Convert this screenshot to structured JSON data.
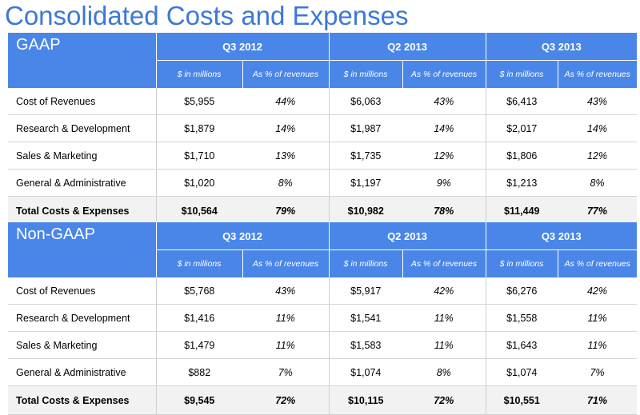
{
  "title": "Consolidated Costs and Expenses",
  "tables": [
    {
      "label": "GAAP",
      "periods": [
        "Q3 2012",
        "Q2 2013",
        "Q3 2013"
      ],
      "sub_headers": [
        "$ in millions",
        "As % of revenues"
      ],
      "rows": [
        {
          "label": "Cost of Revenues",
          "cells": [
            "$5,955",
            "44%",
            "$6,063",
            "43%",
            "$6,413",
            "43%"
          ]
        },
        {
          "label": "Research & Development",
          "cells": [
            "$1,879",
            "14%",
            "$1,987",
            "14%",
            "$2,017",
            "14%"
          ]
        },
        {
          "label": "Sales & Marketing",
          "cells": [
            "$1,710",
            "13%",
            "$1,735",
            "12%",
            "$1,806",
            "12%"
          ]
        },
        {
          "label": "General & Administrative",
          "cells": [
            "$1,020",
            "8%",
            "$1,197",
            "9%",
            "$1,213",
            "8%"
          ]
        }
      ],
      "total": {
        "label": "Total Costs & Expenses",
        "cells": [
          "$10,564",
          "79%",
          "$10,982",
          "78%",
          "$11,449",
          "77%"
        ]
      }
    },
    {
      "label": "Non-GAAP",
      "periods": [
        "Q3 2012",
        "Q2 2013",
        "Q3 2013"
      ],
      "sub_headers": [
        "$ in millions",
        "As % of revenues"
      ],
      "rows": [
        {
          "label": "Cost of Revenues",
          "cells": [
            "$5,768",
            "43%",
            "$5,917",
            "42%",
            "$6,276",
            "42%"
          ]
        },
        {
          "label": "Research & Development",
          "cells": [
            "$1,416",
            "11%",
            "$1,541",
            "11%",
            "$1,558",
            "11%"
          ]
        },
        {
          "label": "Sales & Marketing",
          "cells": [
            "$1,479",
            "11%",
            "$1,583",
            "11%",
            "$1,643",
            "11%"
          ]
        },
        {
          "label": "General & Administrative",
          "cells": [
            "$882",
            "7%",
            "$1,074",
            "8%",
            "$1,074",
            "7%"
          ]
        }
      ],
      "total": {
        "label": "Total Costs & Expenses",
        "cells": [
          "$9,545",
          "72%",
          "$10,115",
          "72%",
          "$10,551",
          "71%"
        ]
      }
    }
  ]
}
